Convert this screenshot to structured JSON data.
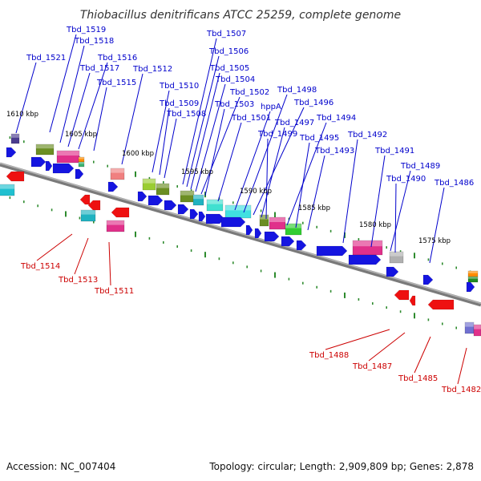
{
  "title": "Thiobacillus denitrificans ATCC 25259, complete genome",
  "footer": {
    "accession": "Accession: NC_007404",
    "summary": "Topology: circular; Length: 2,909,809 bp; Genes: 2,878"
  },
  "colors": {
    "forward_label": "#0000cc",
    "reverse_label": "#cc0000",
    "backbone": "#888888",
    "tick": "#2e8b2e",
    "arrow_forward": "#1515e0",
    "arrow_reverse": "#ee1111"
  },
  "scale_labels": [
    "1610 kbp",
    "1605 kbp",
    "1600 kbp",
    "1595 kbp",
    "1590 kbp",
    "1585 kbp",
    "1580 kbp",
    "1575 kbp"
  ],
  "forward_labels": [
    "Tbd_1519",
    "Tbd_1518",
    "Tbd_1521",
    "Tbd_1516",
    "Tbd_1517",
    "Tbd_1515",
    "Tbd_1512",
    "Tbd_1510",
    "Tbd_1509",
    "Tbd_1508",
    "Tbd_1507",
    "Tbd_1506",
    "Tbd_1505",
    "Tbd_1504",
    "Tbd_1502",
    "Tbd_1503",
    "Tbd_1501",
    "hppA",
    "Tbd_1498",
    "Tbd_1496",
    "Tbd_1497",
    "Tbd_1499",
    "Tbd_1494",
    "Tbd_1495",
    "Tbd_1493",
    "Tbd_1492",
    "Tbd_1491",
    "Tbd_1489",
    "Tbd_1490",
    "Tbd_1486"
  ],
  "reverse_labels": [
    "Tbd_1514",
    "Tbd_1513",
    "Tbd_1511",
    "Tbd_1488",
    "Tbd_1487",
    "Tbd_1485",
    "Tbd_1482"
  ]
}
